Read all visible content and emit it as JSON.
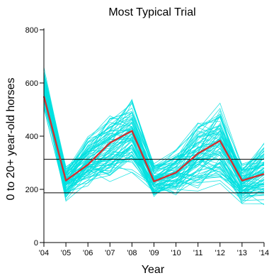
{
  "chart_data": {
    "type": "line",
    "title": "Most Typical Trial",
    "xlabel": "Year",
    "ylabel": "0 to 20+ year-old horses",
    "x": [
      "'04",
      "'05",
      "'06",
      "'07",
      "'08",
      "'09",
      "'10",
      "'11",
      "'12",
      "'13",
      "'14"
    ],
    "xlim": [
      0,
      10
    ],
    "ylim": [
      0,
      800
    ],
    "yticks": [
      0,
      200,
      400,
      600,
      800
    ],
    "grid": false,
    "legend": "none",
    "typical_trial": {
      "color": "#d03030",
      "values": [
        550,
        233,
        293,
        375,
        420,
        230,
        263,
        335,
        383,
        233,
        258
      ]
    },
    "reference_lines": {
      "color": "#000000",
      "values": [
        313,
        187
      ]
    },
    "trial_ensemble": {
      "color": "#00e0e0",
      "count": 80,
      "range_note": "",
      "min_values": [
        490,
        150,
        190,
        215,
        245,
        150,
        165,
        185,
        200,
        130,
        120
      ],
      "max_values": [
        665,
        295,
        410,
        490,
        555,
        305,
        355,
        460,
        530,
        305,
        395
      ]
    }
  }
}
